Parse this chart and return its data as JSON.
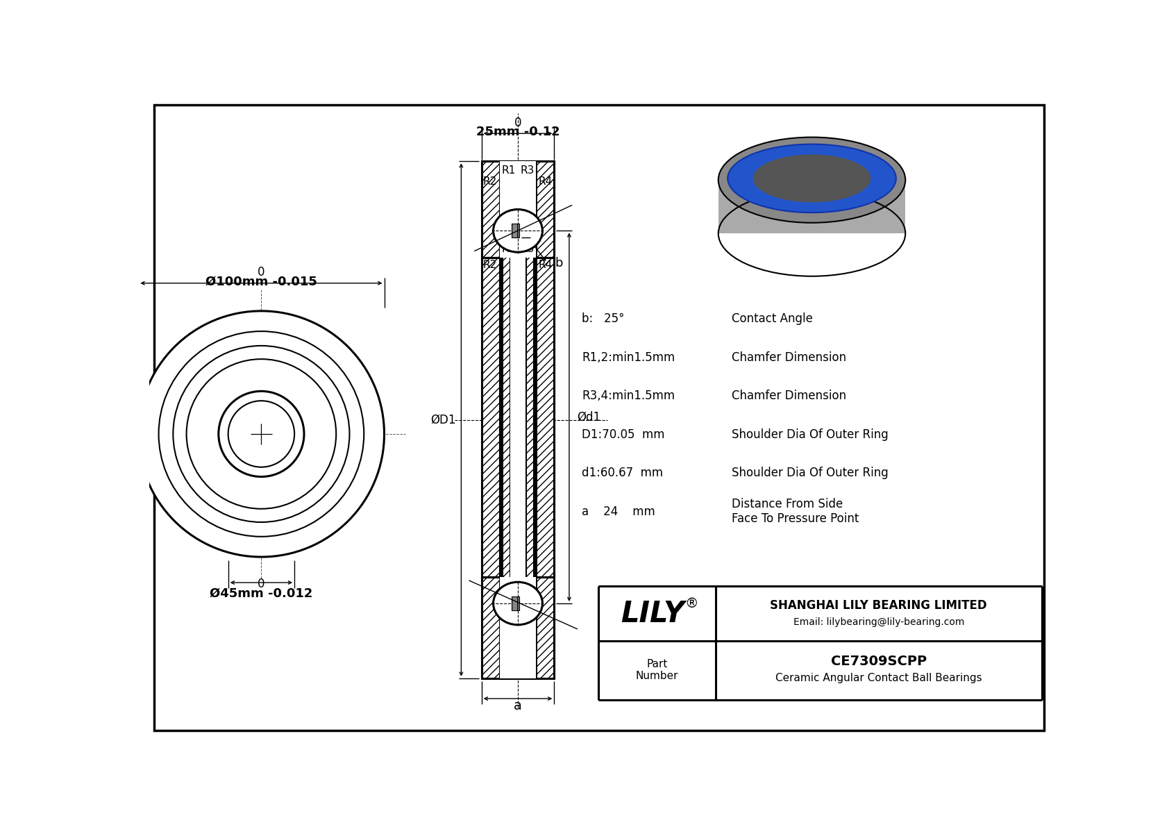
{
  "bg_color": "#ffffff",
  "line_color": "#000000",
  "title_block": {
    "company": "SHANGHAI LILY BEARING LIMITED",
    "email": "Email: lilybearing@lily-bearing.com",
    "part_number": "CE7309SCPP",
    "description": "Ceramic Angular Contact Ball Bearings"
  },
  "dims_top_label": "25mm -0.12",
  "dims_top_zero": "0",
  "dims_outer_label": "Ø100mm -0.015",
  "dims_outer_zero": "0",
  "dims_bore_label": "Ø45mm -0.012",
  "dims_bore_zero": "0",
  "label_D1": "ØD1",
  "label_d1": "Ød1",
  "label_a": "a",
  "label_b": "b",
  "specs": [
    {
      "col1": "b:   25°",
      "col2": "Contact Angle"
    },
    {
      "col1": "R1,2:min1.5mm",
      "col2": "Chamfer Dimension"
    },
    {
      "col1": "R3,4:min1.5mm",
      "col2": "Chamfer Dimension"
    },
    {
      "col1": "D1:70.05  mm",
      "col2": "Shoulder Dia Of Outer Ring"
    },
    {
      "col1": "d1:60.67  mm",
      "col2": "Shoulder Dia Of Outer Ring"
    },
    {
      "col1": "a    24    mm",
      "col2": "Distance From Side\nFace To Pressure Point"
    }
  ],
  "fig_width": 16.84,
  "fig_height": 11.91,
  "dpi": 100
}
